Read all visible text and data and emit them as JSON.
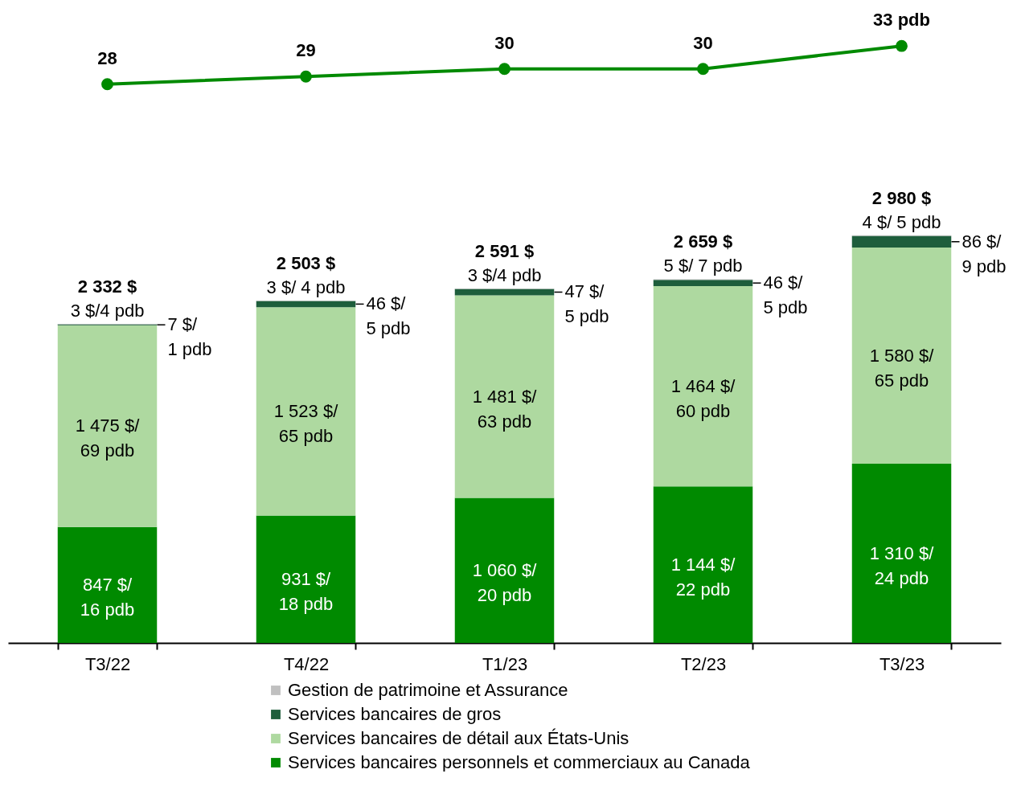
{
  "chart_data": {
    "type": "bar",
    "stacked": true,
    "categories": [
      "T3/22",
      "T4/22",
      "T1/23",
      "T2/23",
      "T3/23"
    ],
    "ylim": [
      0,
      4700
    ],
    "y2lim": [
      -45,
      39
    ],
    "tick_labels": "x",
    "legend": "bottom",
    "marker": "circle",
    "totals": [
      "2 332 $",
      "2 503 $",
      "2 591 $",
      "2 659 $",
      "2 980 $"
    ],
    "series": [
      {
        "name": "Services bancaires personnels et commerciaux au Canada",
        "color": "#008a00",
        "values": [
          847,
          931,
          1060,
          1144,
          1310
        ],
        "value_labels": [
          "847 $/\n16 pdb",
          "931 $/\n18 pdb",
          "1 060 $/\n20 pdb",
          "1 144 $/\n22 pdb",
          "1 310 $/\n24 pdb"
        ]
      },
      {
        "name": "Services bancaires de détail aux États-Unis",
        "color": "#aed9a0",
        "values": [
          1475,
          1523,
          1481,
          1464,
          1580
        ],
        "value_labels": [
          "1 475 $/\n69 pdb",
          "1 523 $/\n65 pdb",
          "1 481 $/\n63 pdb",
          "1 464 $/\n60 pdb",
          "1 580 $/\n65 pdb"
        ]
      },
      {
        "name": "Services bancaires de gros",
        "color": "#1e5e3c",
        "values": [
          7,
          46,
          47,
          46,
          86
        ],
        "value_labels": [
          "7 $/\n1 pdb",
          "46 $/\n5 pdb",
          "47 $/\n5 pdb",
          "46 $/\n5 pdb",
          "86 $/\n9 pdb"
        ]
      },
      {
        "name": "Gestion de patrimoine et Assurance",
        "color": "#c0c0c0",
        "values": [
          3,
          3,
          3,
          5,
          4
        ],
        "value_labels": [
          "3 $/4 pdb",
          "3 $/ 4 pdb",
          "3 $/4 pdb",
          "5 $/ 7 pdb",
          "4 $/ 5 pdb"
        ]
      },
      {
        "type": "line",
        "axis": "y2",
        "color": "#008a00",
        "values": [
          28,
          29,
          30,
          30,
          33
        ],
        "value_labels": [
          "28",
          "29",
          "30",
          "30",
          "33 pdb"
        ]
      }
    ]
  }
}
